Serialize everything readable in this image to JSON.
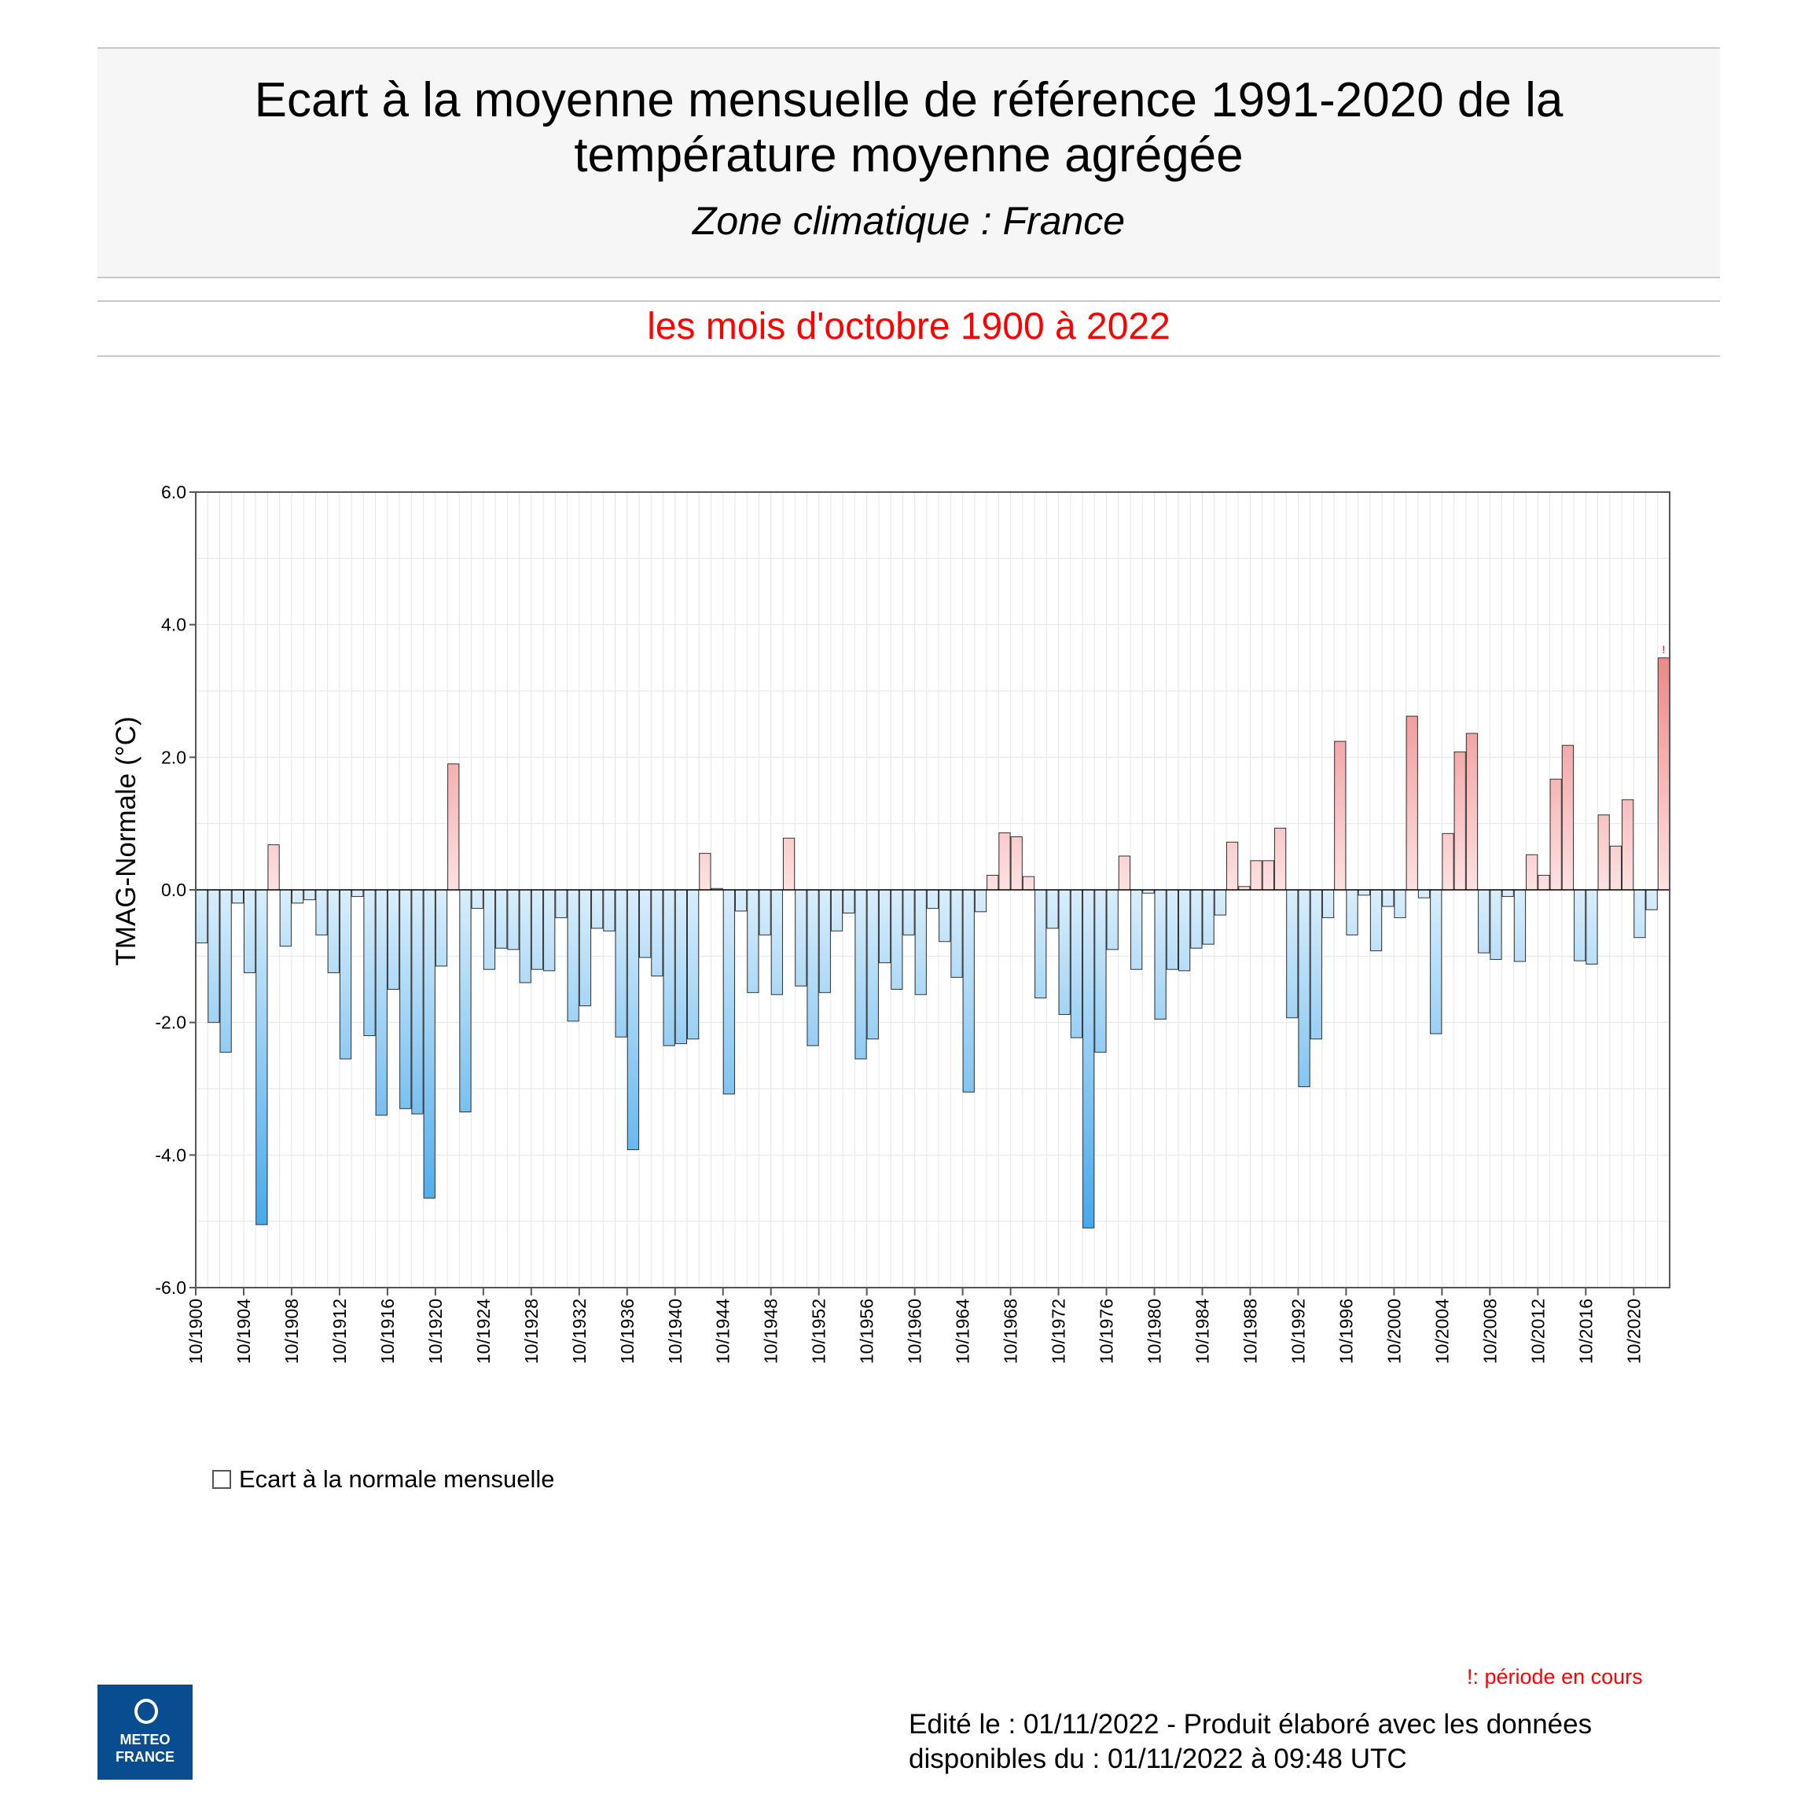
{
  "header": {
    "title_line1": "Ecart à la moyenne mensuelle de référence 1991-2020 de la",
    "title_line2": "température moyenne  agrégée",
    "zone": "Zone climatique : France",
    "period": "les mois d'octobre 1900 à 2022"
  },
  "legend": {
    "label": "Ecart à la normale mensuelle"
  },
  "footer": {
    "note": "!: période en cours",
    "edit_line1": "Edité le : 01/11/2022 - Produit élaboré avec les données",
    "edit_line2": "disponibles du : 01/11/2022 à 09:48 UTC",
    "logo_line1": "METEO",
    "logo_line2": "FRANCE"
  },
  "colors": {
    "positive": "#e05050",
    "negative": "#2e9ee8",
    "period_text": "#ff0000"
  },
  "chart_data": {
    "type": "bar",
    "ylabel": "TMAG-Normale (°C)",
    "ylim": [
      -6,
      6
    ],
    "yticks": [
      "6.0",
      "4.0",
      "2.0",
      "0.0",
      "-2.0",
      "-4.0",
      "-6.0"
    ],
    "xtick_labels": [
      "10/1900",
      "10/1904",
      "10/1908",
      "10/1912",
      "10/1916",
      "10/1920",
      "10/1924",
      "10/1928",
      "10/1932",
      "10/1936",
      "10/1940",
      "10/1944",
      "10/1948",
      "10/1952",
      "10/1956",
      "10/1960",
      "10/1964",
      "10/1968",
      "10/1972",
      "10/1976",
      "10/1980",
      "10/1984",
      "10/1988",
      "10/1992",
      "10/1996",
      "10/2000",
      "10/2004",
      "10/2008",
      "10/2012",
      "10/2016",
      "10/2020"
    ],
    "marker": "!",
    "x_start": 1900,
    "x_end": 2022,
    "values": [
      -0.8,
      -2.0,
      -2.45,
      -0.2,
      -1.25,
      -5.05,
      0.68,
      -0.85,
      -0.2,
      -0.15,
      -0.68,
      -1.25,
      -2.55,
      -0.1,
      -2.2,
      -3.4,
      -1.5,
      -3.3,
      -3.38,
      -4.65,
      -1.15,
      1.9,
      -3.35,
      -0.28,
      -1.2,
      -0.88,
      -0.9,
      -1.4,
      -1.2,
      -1.22,
      -0.42,
      -1.98,
      -1.75,
      -0.58,
      -0.62,
      -2.22,
      -3.92,
      -1.02,
      -1.3,
      -2.35,
      -2.32,
      -2.25,
      0.55,
      0.02,
      -3.08,
      -0.32,
      -1.55,
      -0.68,
      -1.58,
      0.78,
      -1.45,
      -2.35,
      -1.55,
      -0.62,
      -0.35,
      -2.55,
      -2.25,
      -1.1,
      -1.5,
      -0.68,
      -1.58,
      -0.28,
      -0.78,
      -1.32,
      -3.05,
      -0.33,
      0.22,
      0.86,
      0.8,
      0.2,
      -1.63,
      -0.58,
      -1.88,
      -2.23,
      -5.1,
      -2.45,
      -0.9,
      0.51,
      -1.2,
      -0.05,
      -1.95,
      -1.2,
      -1.22,
      -0.88,
      -0.82,
      -0.38,
      0.72,
      0.05,
      0.44,
      0.44,
      0.93,
      -1.93,
      -2.97,
      -2.25,
      -0.42,
      2.24,
      -0.68,
      -0.08,
      -0.92,
      -0.25,
      -0.42,
      2.62,
      -0.12,
      -2.17,
      0.85,
      2.08,
      2.36,
      -0.95,
      -1.05,
      -0.1,
      -1.08,
      0.53,
      0.22,
      1.67,
      2.18,
      -1.07,
      -1.12,
      1.13,
      0.66,
      1.36,
      -0.72,
      -0.3,
      3.5
    ]
  }
}
